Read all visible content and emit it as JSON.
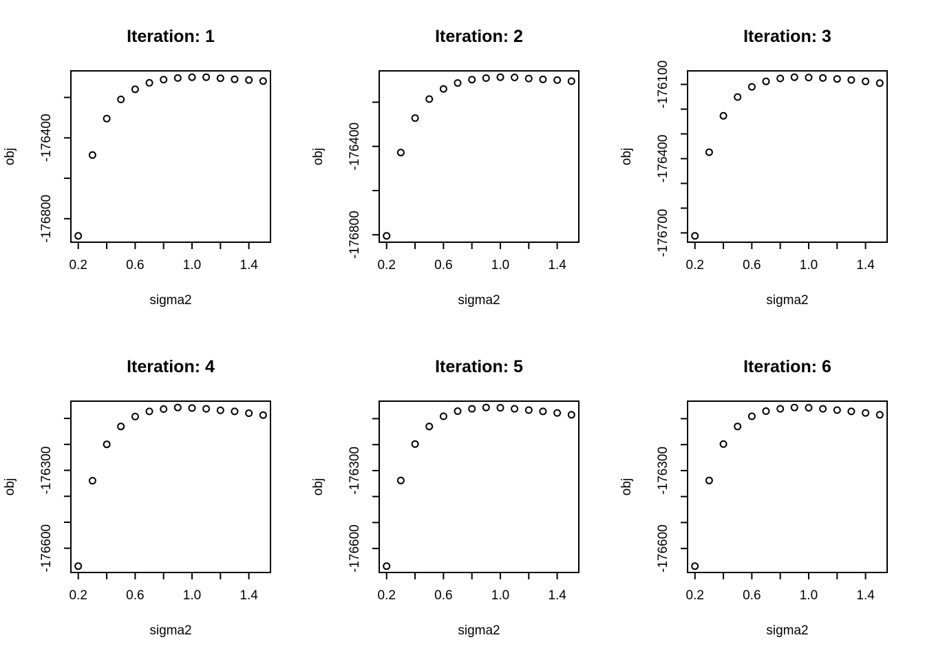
{
  "page": {
    "background": "#ffffff",
    "foreground": "#000000",
    "layout": {
      "rows": 2,
      "cols": 3
    },
    "point_style": "open-circle"
  },
  "chart_data": [
    {
      "type": "scatter",
      "title": "Iteration: 1",
      "xlabel": "sigma2",
      "ylabel": "obj",
      "grid": false,
      "legend": null,
      "x": [
        0.2,
        0.3,
        0.4,
        0.5,
        0.6,
        0.7,
        0.8,
        0.9,
        1.0,
        1.1,
        1.2,
        1.3,
        1.4,
        1.5
      ],
      "y": [
        -176885,
        -176485,
        -176305,
        -176210,
        -176160,
        -176128,
        -176112,
        -176104,
        -176100,
        -176100,
        -176105,
        -176110,
        -176114,
        -176119
      ],
      "xlim": [
        0.148,
        1.552
      ],
      "ylim": [
        -176916.4,
        -176068.6
      ],
      "xticks": [
        0.2,
        0.4,
        0.6,
        0.8,
        1.0,
        1.2,
        1.4
      ],
      "xtick_labels": [
        "0.2",
        "",
        "0.6",
        "",
        "1.0",
        "",
        "1.4"
      ],
      "yticks": [
        -176800,
        -176600,
        -176400,
        -176200
      ],
      "ytick_labels": [
        "-176800",
        "",
        "-176400",
        ""
      ]
    },
    {
      "type": "scatter",
      "title": "Iteration: 2",
      "xlabel": "sigma2",
      "ylabel": "obj",
      "grid": false,
      "legend": null,
      "x": [
        0.2,
        0.3,
        0.4,
        0.5,
        0.6,
        0.7,
        0.8,
        0.9,
        1.0,
        1.1,
        1.2,
        1.3,
        1.4,
        1.5
      ],
      "y": [
        -176805,
        -176428,
        -176272,
        -176186,
        -176140,
        -176113,
        -176098,
        -176091,
        -176087,
        -176088,
        -176093,
        -176097,
        -176100,
        -176105
      ],
      "xlim": [
        0.148,
        1.552
      ],
      "ylim": [
        -176833.7,
        -176058.3
      ],
      "xticks": [
        0.2,
        0.4,
        0.6,
        0.8,
        1.0,
        1.2,
        1.4
      ],
      "xtick_labels": [
        "0.2",
        "",
        "0.6",
        "",
        "1.0",
        "",
        "1.4"
      ],
      "yticks": [
        -176800,
        -176600,
        -176400,
        -176200
      ],
      "ytick_labels": [
        "-176800",
        "",
        "-176400",
        ""
      ]
    },
    {
      "type": "scatter",
      "title": "Iteration: 3",
      "xlabel": "sigma2",
      "ylabel": "obj",
      "grid": false,
      "legend": null,
      "x": [
        0.2,
        0.3,
        0.4,
        0.5,
        0.6,
        0.7,
        0.8,
        0.9,
        1.0,
        1.1,
        1.2,
        1.3,
        1.4,
        1.5
      ],
      "y": [
        -176712,
        -176374,
        -176227,
        -176151,
        -176110,
        -176088,
        -176076,
        -176071,
        -176072,
        -176074,
        -176078,
        -176082,
        -176088,
        -176095
      ],
      "xlim": [
        0.148,
        1.552
      ],
      "ylim": [
        -176737.6,
        -176045.4
      ],
      "xticks": [
        0.2,
        0.4,
        0.6,
        0.8,
        1.0,
        1.2,
        1.4
      ],
      "xtick_labels": [
        "0.2",
        "",
        "0.6",
        "",
        "1.0",
        "",
        "1.4"
      ],
      "yticks": [
        -176700,
        -176600,
        -176500,
        -176400,
        -176300,
        -176200,
        -176100
      ],
      "ytick_labels": [
        "-176700",
        "",
        "",
        "-176400",
        "",
        "",
        "-176100"
      ]
    },
    {
      "type": "scatter",
      "title": "Iteration: 4",
      "xlabel": "sigma2",
      "ylabel": "obj",
      "grid": false,
      "legend": null,
      "x": [
        0.2,
        0.3,
        0.4,
        0.5,
        0.6,
        0.7,
        0.8,
        0.9,
        1.0,
        1.1,
        1.2,
        1.3,
        1.4,
        1.5
      ],
      "y": [
        -176669,
        -176340,
        -176200,
        -176131,
        -176093,
        -176073,
        -176064,
        -176058,
        -176060,
        -176063,
        -176069,
        -176073,
        -176080,
        -176087
      ],
      "xlim": [
        0.148,
        1.552
      ],
      "ylim": [
        -176693.4,
        -176033.6
      ],
      "xticks": [
        0.2,
        0.4,
        0.6,
        0.8,
        1.0,
        1.2,
        1.4
      ],
      "xtick_labels": [
        "0.2",
        "",
        "0.6",
        "",
        "1.0",
        "",
        "1.4"
      ],
      "yticks": [
        -176600,
        -176500,
        -176400,
        -176300,
        -176200,
        -176100
      ],
      "ytick_labels": [
        "-176600",
        "",
        "",
        "-176300",
        "",
        ""
      ]
    },
    {
      "type": "scatter",
      "title": "Iteration: 5",
      "xlabel": "sigma2",
      "ylabel": "obj",
      "grid": false,
      "legend": null,
      "x": [
        0.2,
        0.3,
        0.4,
        0.5,
        0.6,
        0.7,
        0.8,
        0.9,
        1.0,
        1.1,
        1.2,
        1.3,
        1.4,
        1.5
      ],
      "y": [
        -176668,
        -176338,
        -176198,
        -176130,
        -176091,
        -176071,
        -176062,
        -176057,
        -176058,
        -176062,
        -176067,
        -176072,
        -176078,
        -176085
      ],
      "xlim": [
        0.148,
        1.552
      ],
      "ylim": [
        -176692.4,
        -176032.6
      ],
      "xticks": [
        0.2,
        0.4,
        0.6,
        0.8,
        1.0,
        1.2,
        1.4
      ],
      "xtick_labels": [
        "0.2",
        "",
        "0.6",
        "",
        "1.0",
        "",
        "1.4"
      ],
      "yticks": [
        -176600,
        -176500,
        -176400,
        -176300,
        -176200,
        -176100
      ],
      "ytick_labels": [
        "-176600",
        "",
        "",
        "-176300",
        "",
        ""
      ]
    },
    {
      "type": "scatter",
      "title": "Iteration: 6",
      "xlabel": "sigma2",
      "ylabel": "obj",
      "grid": false,
      "legend": null,
      "x": [
        0.2,
        0.3,
        0.4,
        0.5,
        0.6,
        0.7,
        0.8,
        0.9,
        1.0,
        1.1,
        1.2,
        1.3,
        1.4,
        1.5
      ],
      "y": [
        -176668,
        -176338,
        -176198,
        -176130,
        -176091,
        -176071,
        -176062,
        -176057,
        -176058,
        -176062,
        -176067,
        -176072,
        -176078,
        -176085
      ],
      "xlim": [
        0.148,
        1.552
      ],
      "ylim": [
        -176692.4,
        -176032.6
      ],
      "xticks": [
        0.2,
        0.4,
        0.6,
        0.8,
        1.0,
        1.2,
        1.4
      ],
      "xtick_labels": [
        "0.2",
        "",
        "0.6",
        "",
        "1.0",
        "",
        "1.4"
      ],
      "yticks": [
        -176600,
        -176500,
        -176400,
        -176300,
        -176200,
        -176100
      ],
      "ytick_labels": [
        "-176600",
        "",
        "",
        "-176300",
        "",
        ""
      ]
    }
  ]
}
